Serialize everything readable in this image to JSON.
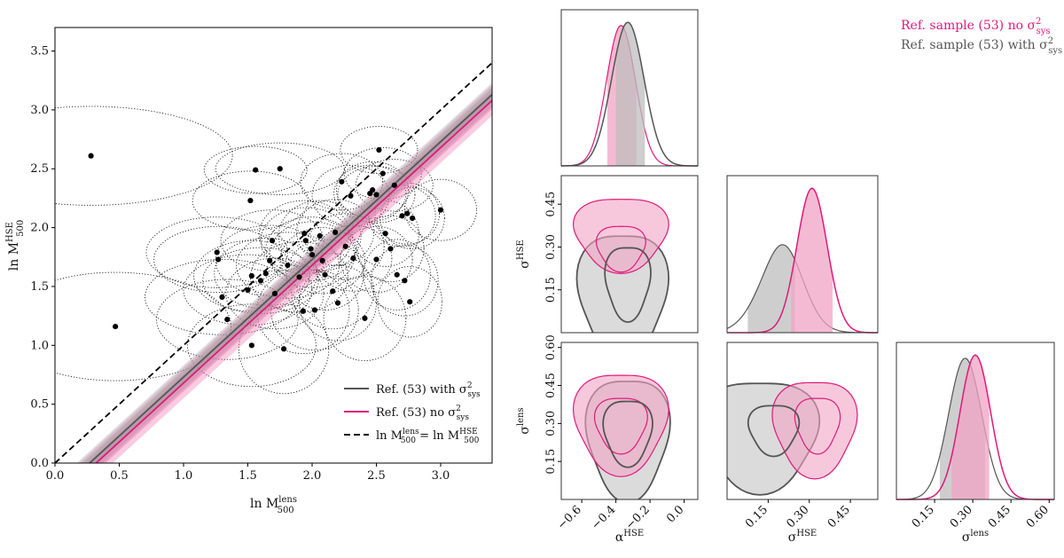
{
  "chart_data": [
    {
      "type": "scatter",
      "name": "mass-relation",
      "xlabel": "ln M",
      "xlabel_sup": "lens",
      "xlabel_sub": "500",
      "ylabel": "ln M",
      "ylabel_sup": "HSE",
      "ylabel_sub": "500",
      "xlim": [
        0.0,
        3.4
      ],
      "ylim": [
        0.0,
        3.7
      ],
      "xticks": [
        "0.0",
        "0.5",
        "1.0",
        "1.5",
        "2.0",
        "2.5",
        "3.0"
      ],
      "yticks": [
        "0.0",
        "0.5",
        "1.0",
        "1.5",
        "2.0",
        "2.5",
        "3.0",
        "3.5"
      ],
      "points": [
        {
          "x": 0.28,
          "y": 2.61,
          "ex": 1.1,
          "ey": 0.42
        },
        {
          "x": 0.47,
          "y": 1.16,
          "ex": 0.9,
          "ey": 0.46
        },
        {
          "x": 1.26,
          "y": 1.79,
          "ex": 0.55,
          "ey": 0.3
        },
        {
          "x": 1.27,
          "y": 1.73,
          "ex": 0.5,
          "ey": 0.28
        },
        {
          "x": 1.3,
          "y": 1.41,
          "ex": 0.6,
          "ey": 0.32
        },
        {
          "x": 1.34,
          "y": 1.22,
          "ex": 0.55,
          "ey": 0.34
        },
        {
          "x": 1.5,
          "y": 1.47,
          "ex": 0.5,
          "ey": 0.3
        },
        {
          "x": 1.52,
          "y": 2.23,
          "ex": 0.45,
          "ey": 0.25
        },
        {
          "x": 1.53,
          "y": 1.0,
          "ex": 0.5,
          "ey": 0.35
        },
        {
          "x": 1.53,
          "y": 1.59,
          "ex": 0.45,
          "ey": 0.3
        },
        {
          "x": 1.56,
          "y": 2.49,
          "ex": 0.4,
          "ey": 0.2
        },
        {
          "x": 1.6,
          "y": 1.55,
          "ex": 0.45,
          "ey": 0.28
        },
        {
          "x": 1.64,
          "y": 1.61,
          "ex": 0.4,
          "ey": 0.3
        },
        {
          "x": 1.67,
          "y": 1.72,
          "ex": 0.42,
          "ey": 0.3
        },
        {
          "x": 1.69,
          "y": 1.89,
          "ex": 0.4,
          "ey": 0.26
        },
        {
          "x": 1.71,
          "y": 1.44,
          "ex": 0.38,
          "ey": 0.3
        },
        {
          "x": 1.75,
          "y": 2.5,
          "ex": 0.5,
          "ey": 0.22
        },
        {
          "x": 1.78,
          "y": 0.97,
          "ex": 0.35,
          "ey": 0.38
        },
        {
          "x": 1.81,
          "y": 1.68,
          "ex": 0.4,
          "ey": 0.28
        },
        {
          "x": 1.9,
          "y": 1.58,
          "ex": 0.38,
          "ey": 0.3
        },
        {
          "x": 1.93,
          "y": 1.29,
          "ex": 0.36,
          "ey": 0.36
        },
        {
          "x": 1.94,
          "y": 1.95,
          "ex": 0.35,
          "ey": 0.28
        },
        {
          "x": 1.95,
          "y": 1.89,
          "ex": 0.35,
          "ey": 0.28
        },
        {
          "x": 1.99,
          "y": 1.82,
          "ex": 0.35,
          "ey": 0.27
        },
        {
          "x": 2.0,
          "y": 1.77,
          "ex": 0.33,
          "ey": 0.28
        },
        {
          "x": 2.02,
          "y": 1.3,
          "ex": 0.34,
          "ey": 0.34
        },
        {
          "x": 2.06,
          "y": 1.93,
          "ex": 0.32,
          "ey": 0.3
        },
        {
          "x": 2.08,
          "y": 1.72,
          "ex": 0.33,
          "ey": 0.28
        },
        {
          "x": 2.1,
          "y": 1.6,
          "ex": 0.3,
          "ey": 0.3
        },
        {
          "x": 2.16,
          "y": 1.46,
          "ex": 0.32,
          "ey": 0.32
        },
        {
          "x": 2.18,
          "y": 1.96,
          "ex": 0.3,
          "ey": 0.28
        },
        {
          "x": 2.2,
          "y": 1.36,
          "ex": 0.3,
          "ey": 0.32
        },
        {
          "x": 2.23,
          "y": 2.39,
          "ex": 0.32,
          "ey": 0.24
        },
        {
          "x": 2.26,
          "y": 1.84,
          "ex": 0.3,
          "ey": 0.28
        },
        {
          "x": 2.3,
          "y": 2.27,
          "ex": 0.3,
          "ey": 0.26
        },
        {
          "x": 2.32,
          "y": 1.74,
          "ex": 0.3,
          "ey": 0.28
        },
        {
          "x": 2.41,
          "y": 1.23,
          "ex": 0.32,
          "ey": 0.36
        },
        {
          "x": 2.45,
          "y": 2.29,
          "ex": 0.28,
          "ey": 0.24
        },
        {
          "x": 2.47,
          "y": 2.32,
          "ex": 0.28,
          "ey": 0.24
        },
        {
          "x": 2.5,
          "y": 2.28,
          "ex": 0.3,
          "ey": 0.24
        },
        {
          "x": 2.5,
          "y": 1.73,
          "ex": 0.28,
          "ey": 0.28
        },
        {
          "x": 2.52,
          "y": 2.66,
          "ex": 0.3,
          "ey": 0.2
        },
        {
          "x": 2.55,
          "y": 2.46,
          "ex": 0.3,
          "ey": 0.22
        },
        {
          "x": 2.57,
          "y": 1.95,
          "ex": 0.26,
          "ey": 0.28
        },
        {
          "x": 2.61,
          "y": 1.82,
          "ex": 0.26,
          "ey": 0.28
        },
        {
          "x": 2.64,
          "y": 2.36,
          "ex": 0.3,
          "ey": 0.22
        },
        {
          "x": 2.66,
          "y": 1.6,
          "ex": 0.26,
          "ey": 0.3
        },
        {
          "x": 2.7,
          "y": 2.1,
          "ex": 0.26,
          "ey": 0.26
        },
        {
          "x": 2.72,
          "y": 1.55,
          "ex": 0.26,
          "ey": 0.3
        },
        {
          "x": 2.74,
          "y": 2.12,
          "ex": 0.25,
          "ey": 0.26
        },
        {
          "x": 2.76,
          "y": 1.37,
          "ex": 0.25,
          "ey": 0.3
        },
        {
          "x": 2.78,
          "y": 2.08,
          "ex": 0.25,
          "ey": 0.26
        },
        {
          "x": 3.0,
          "y": 2.15,
          "ex": 0.28,
          "ey": 0.26
        }
      ],
      "series": [
        {
          "name": "Ref. (53) with σ²sys",
          "label_main": "Ref. (53) with σ",
          "label_sup": "2",
          "label_sub": "sys",
          "color": "#555555",
          "slope": 1.0,
          "intercept": -0.27,
          "band": 0.1
        },
        {
          "name": "Ref. (53) no σ²sys",
          "label_main": "Ref. (53) no σ",
          "label_sup": "2",
          "label_sub": "sys",
          "color": "#e0197a",
          "slope": 1.0,
          "intercept": -0.32,
          "band": 0.13
        },
        {
          "name": "ln M500lens = ln M500HSE",
          "label_main": "ln M",
          "label_sup": "lens",
          "label_sub": "500",
          "label_mid": " = ln M",
          "label_sup2": "HSE",
          "label_sub2": "500",
          "color": "#000000",
          "slope": 1.0,
          "intercept": 0.0
        }
      ],
      "legend": "lower-right"
    },
    {
      "type": "corner",
      "name": "posterior-corner",
      "parameters": [
        {
          "symbol": "α",
          "sup": "HSE",
          "range": [
            -0.72,
            0.08
          ],
          "ticks": [
            "−0.6",
            "−0.4",
            "−0.2",
            "0.0"
          ],
          "tick_values": [
            -0.6,
            -0.4,
            -0.2,
            0.0
          ]
        },
        {
          "symbol": "σ",
          "sup": "HSE",
          "range": [
            0.0,
            0.55
          ],
          "ticks": [
            "0.15",
            "0.30",
            "0.45"
          ],
          "tick_values": [
            0.15,
            0.3,
            0.45
          ]
        },
        {
          "symbol": "σ",
          "sup": "lens",
          "range": [
            0.0,
            0.62
          ],
          "ticks": [
            "0.15",
            "0.30",
            "0.45",
            "0.60"
          ],
          "tick_values": [
            0.15,
            0.3,
            0.45,
            0.6
          ]
        }
      ],
      "row_ranges": [
        null,
        {
          "range": [
            0.0,
            0.55
          ],
          "ticks": [
            "0.15",
            "0.30",
            "0.45"
          ],
          "tick_values": [
            0.15,
            0.3,
            0.45
          ]
        },
        {
          "range": [
            0.0,
            0.62
          ],
          "ticks": [
            "0.15",
            "0.30",
            "0.45",
            "0.60"
          ],
          "tick_values": [
            0.15,
            0.3,
            0.45,
            0.6
          ]
        }
      ],
      "series": [
        {
          "name": "Ref. sample (53) no σ²sys",
          "label_main": "Ref. sample (53) no σ",
          "label_sup": "2",
          "label_sub": "sys",
          "color": "#e0197a",
          "fill": "#f2a3c4"
        },
        {
          "name": "Ref. sample (53) with σ²sys",
          "label_main": "Ref. sample (53) with σ",
          "label_sup": "2",
          "label_sub": "sys",
          "color": "#555555",
          "fill": "#bdbdbd"
        }
      ],
      "legend": "top-right"
    }
  ]
}
